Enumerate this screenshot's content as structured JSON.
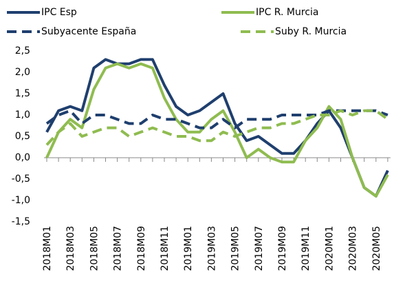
{
  "chart_data": {
    "type": "line",
    "categories": [
      "2018M01",
      null,
      "2018M03",
      null,
      "2018M05",
      null,
      "2018M07",
      null,
      "2018M09",
      null,
      "2018M11",
      null,
      "2019M01",
      null,
      "2019M03",
      null,
      "2019M05",
      null,
      "2019M07",
      null,
      "2019M09",
      null,
      "2019M11",
      null,
      "2020M01",
      null,
      "2020M03",
      null,
      "2020M05",
      null
    ],
    "series": [
      {
        "name": "IPC Esp",
        "color": "#1f3f6e",
        "style": "solid",
        "values": [
          0.6,
          1.1,
          1.2,
          1.1,
          2.1,
          2.3,
          2.2,
          2.2,
          2.3,
          2.3,
          1.7,
          1.2,
          1.0,
          1.1,
          1.3,
          1.5,
          0.8,
          0.4,
          0.5,
          0.3,
          0.1,
          0.1,
          0.4,
          0.8,
          1.1,
          0.7,
          0.0,
          -0.7,
          -0.9,
          -0.3
        ]
      },
      {
        "name": "IPC R. Murcia",
        "color": "#8fbc50",
        "style": "solid",
        "values": [
          0.0,
          0.6,
          0.9,
          0.7,
          1.6,
          2.1,
          2.2,
          2.1,
          2.2,
          2.1,
          1.4,
          0.9,
          0.6,
          0.6,
          0.9,
          1.1,
          0.6,
          0.0,
          0.2,
          0.0,
          -0.1,
          -0.1,
          0.4,
          0.7,
          1.2,
          0.9,
          0.0,
          -0.7,
          -0.9,
          -0.4
        ]
      },
      {
        "name": "Subyacente España",
        "color": "#1f3f6e",
        "style": "dashed",
        "values": [
          0.8,
          1.0,
          1.1,
          0.8,
          1.0,
          1.0,
          0.9,
          0.8,
          0.8,
          1.0,
          0.9,
          0.9,
          0.8,
          0.7,
          0.7,
          0.9,
          0.7,
          0.9,
          0.9,
          0.9,
          1.0,
          1.0,
          1.0,
          1.0,
          1.1,
          1.1,
          1.1,
          1.1,
          1.1,
          1.0
        ]
      },
      {
        "name": "Suby R. Murcia",
        "color": "#8fbc50",
        "style": "dashed",
        "values": [
          0.3,
          0.6,
          0.8,
          0.5,
          0.6,
          0.7,
          0.7,
          0.5,
          0.6,
          0.7,
          0.6,
          0.5,
          0.5,
          0.4,
          0.4,
          0.6,
          0.5,
          0.6,
          0.7,
          0.7,
          0.8,
          0.8,
          0.9,
          1.0,
          1.0,
          1.1,
          1.0,
          1.1,
          1.1,
          0.9
        ]
      }
    ],
    "ylim": [
      -1.5,
      2.5
    ],
    "yticks": [
      {
        "value": -1.5,
        "label": "-1,5"
      },
      {
        "value": -1.0,
        "label": "-1,0"
      },
      {
        "value": -0.5,
        "label": "-0,5"
      },
      {
        "value": 0.0,
        "label": "0,0"
      },
      {
        "value": 0.5,
        "label": "0,5"
      },
      {
        "value": 1.0,
        "label": "1,0"
      },
      {
        "value": 1.5,
        "label": "1,5"
      },
      {
        "value": 2.0,
        "label": "2,0"
      },
      {
        "value": 2.5,
        "label": "2,5"
      }
    ],
    "grid": false,
    "legend": "top"
  }
}
